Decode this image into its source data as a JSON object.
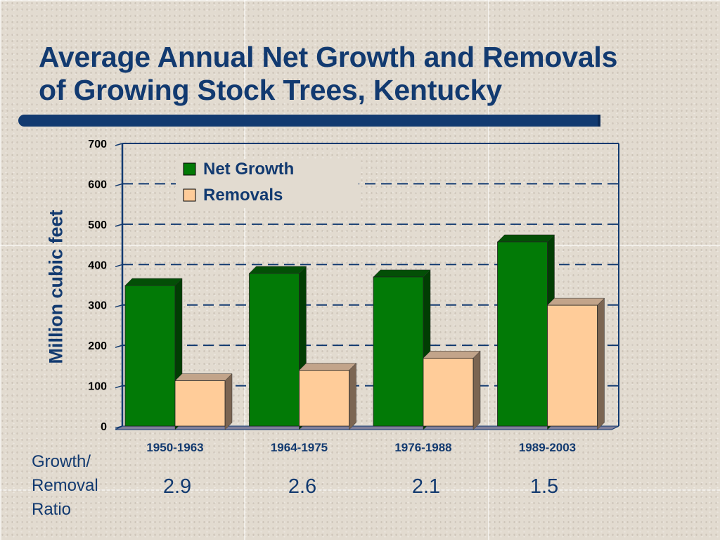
{
  "slide": {
    "title_line1": "Average Annual Net Growth and Removals",
    "title_line2": "of Growing Stock Trees, Kentucky"
  },
  "ratio": {
    "label_lines": [
      "Growth/",
      "Removal",
      "Ratio"
    ],
    "values": [
      "2.9",
      "2.6",
      "2.1",
      "1.5"
    ]
  },
  "colors": {
    "title": "#123a70",
    "net_growth": "#027a06",
    "removals": "#ffcc99",
    "axis": "#123a70",
    "floor": "#7f7f9a"
  },
  "chart_data": {
    "type": "bar",
    "categories": [
      "1950-1963",
      "1964-1975",
      "1976-1988",
      "1989-2003"
    ],
    "series": [
      {
        "name": "Net Growth",
        "values": [
          357,
          387,
          378,
          465
        ]
      },
      {
        "name": "Removals",
        "values": [
          121,
          147,
          177,
          308
        ]
      }
    ],
    "ylabel": "Million cubic feet",
    "ylim": [
      0,
      700
    ],
    "yticks": [
      "0",
      "100",
      "200",
      "300",
      "400",
      "500",
      "600",
      "700"
    ],
    "grid": true,
    "legend_position": "top-left",
    "style": "3d"
  }
}
